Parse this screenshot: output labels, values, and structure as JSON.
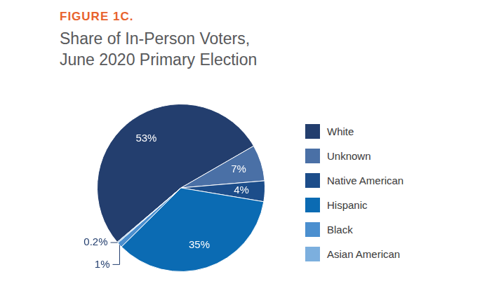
{
  "chart_data": {
    "type": "pie",
    "figure_label": "FIGURE 1C.",
    "title": [
      "Share of In-Person Voters,",
      "June 2020 Primary Election"
    ],
    "categories": [
      "White",
      "Unknown",
      "Native American",
      "Hispanic",
      "Black",
      "Asian American"
    ],
    "values": [
      53,
      7,
      4,
      35,
      1,
      0.2
    ],
    "value_labels": [
      "53%",
      "7%",
      "4%",
      "35%",
      "1%",
      "0.2%"
    ],
    "colors": [
      "#233e6e",
      "#4a70a6",
      "#1c4d8a",
      "#0b6bb3",
      "#4b8fcf",
      "#7cafde"
    ],
    "data_labels": true,
    "legend": "right"
  }
}
